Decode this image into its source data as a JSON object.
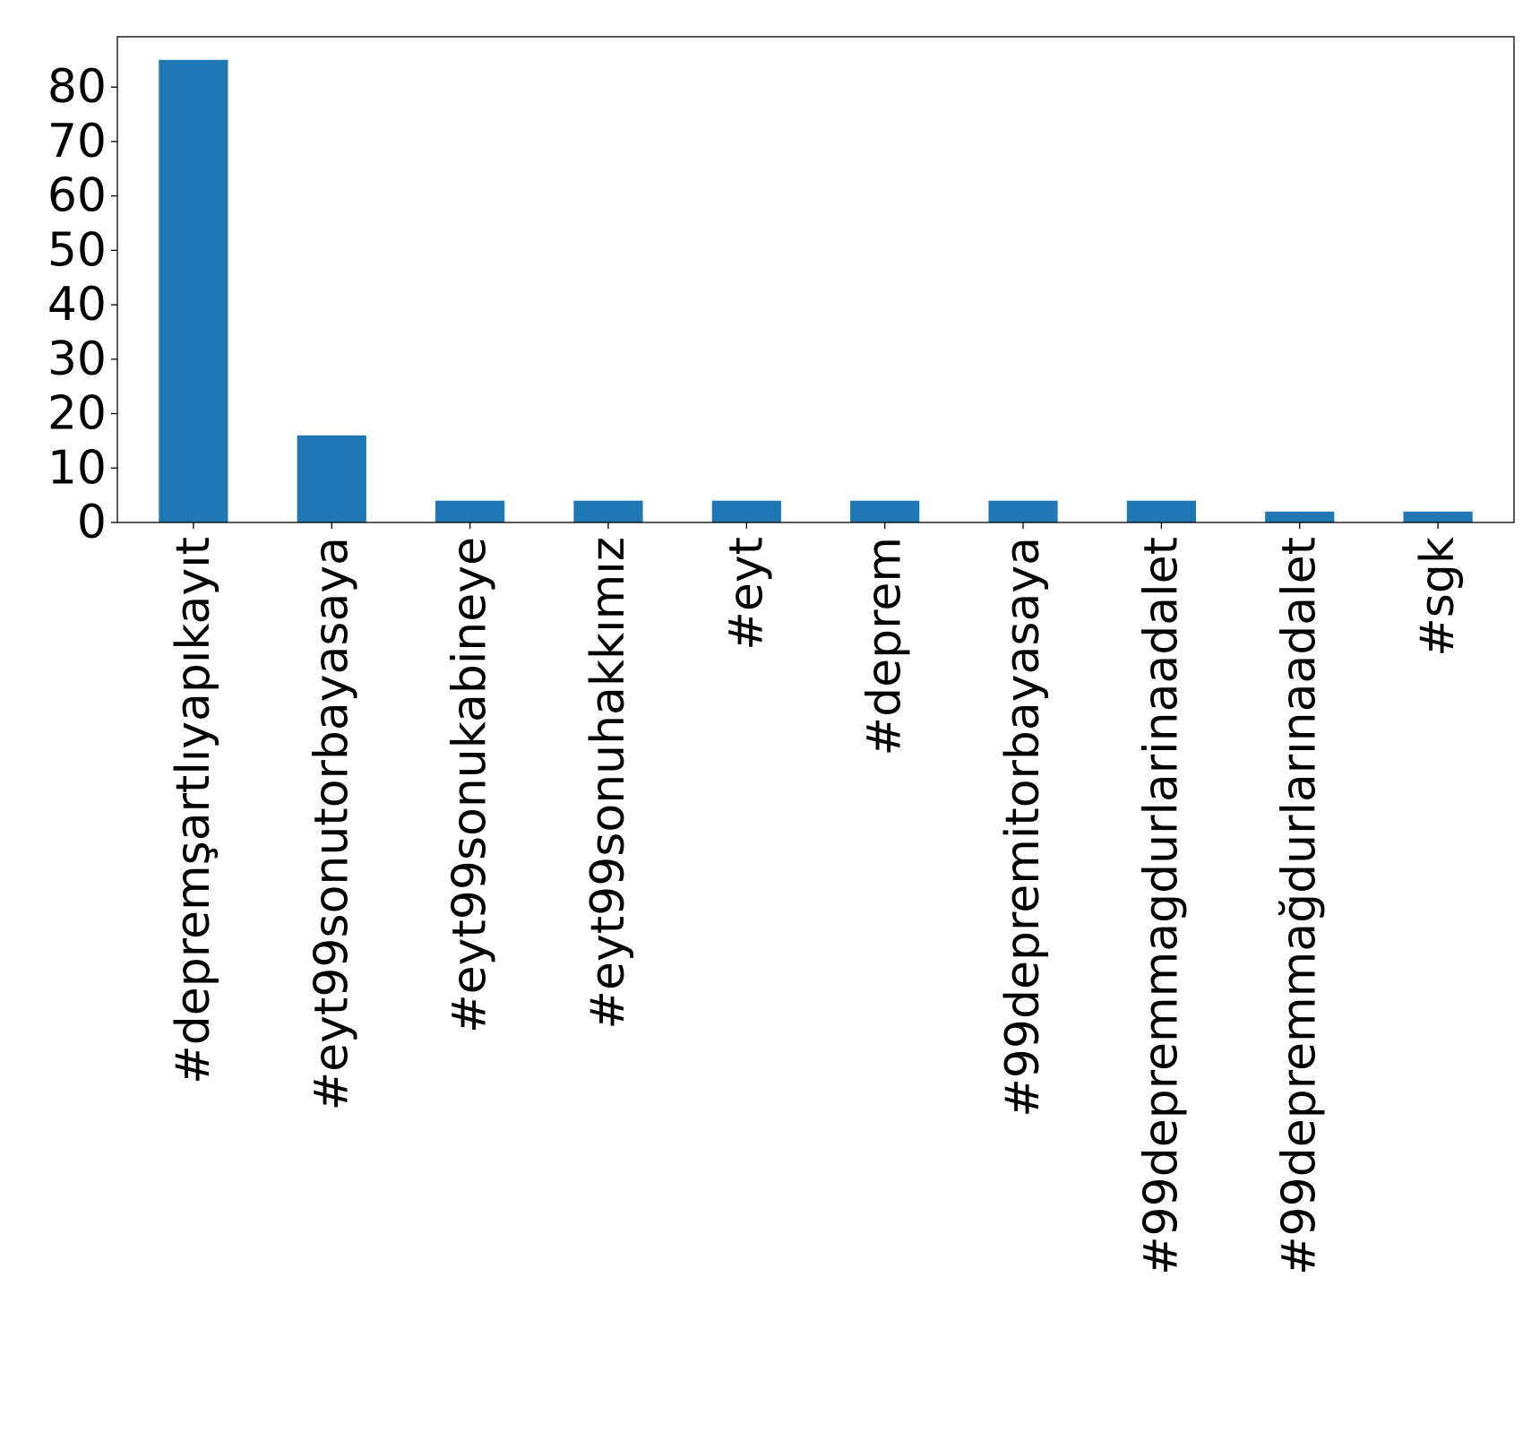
{
  "chart_data": {
    "type": "bar",
    "title": "",
    "xlabel": "",
    "ylabel": "",
    "categories": [
      "#depremşartlıyapıkayıt",
      "#eyt99sonutorbayasaya",
      "#eyt99sonukabineye",
      "#eyt99sonuhakkımız",
      "#eyt",
      "#deprem",
      "#99depremitorbayasaya",
      "#99depremmagdurlarinaadalet",
      "#99depremmağdurlarınaadalet",
      "#sgk"
    ],
    "values": [
      85,
      16,
      4,
      4,
      4,
      4,
      4,
      4,
      2,
      2
    ],
    "ylim": [
      0,
      89.25
    ],
    "yticks": [
      0,
      10,
      20,
      30,
      40,
      50,
      60,
      70,
      80
    ],
    "grid": false,
    "legend": "none",
    "bar_color": "#1f77b4"
  }
}
